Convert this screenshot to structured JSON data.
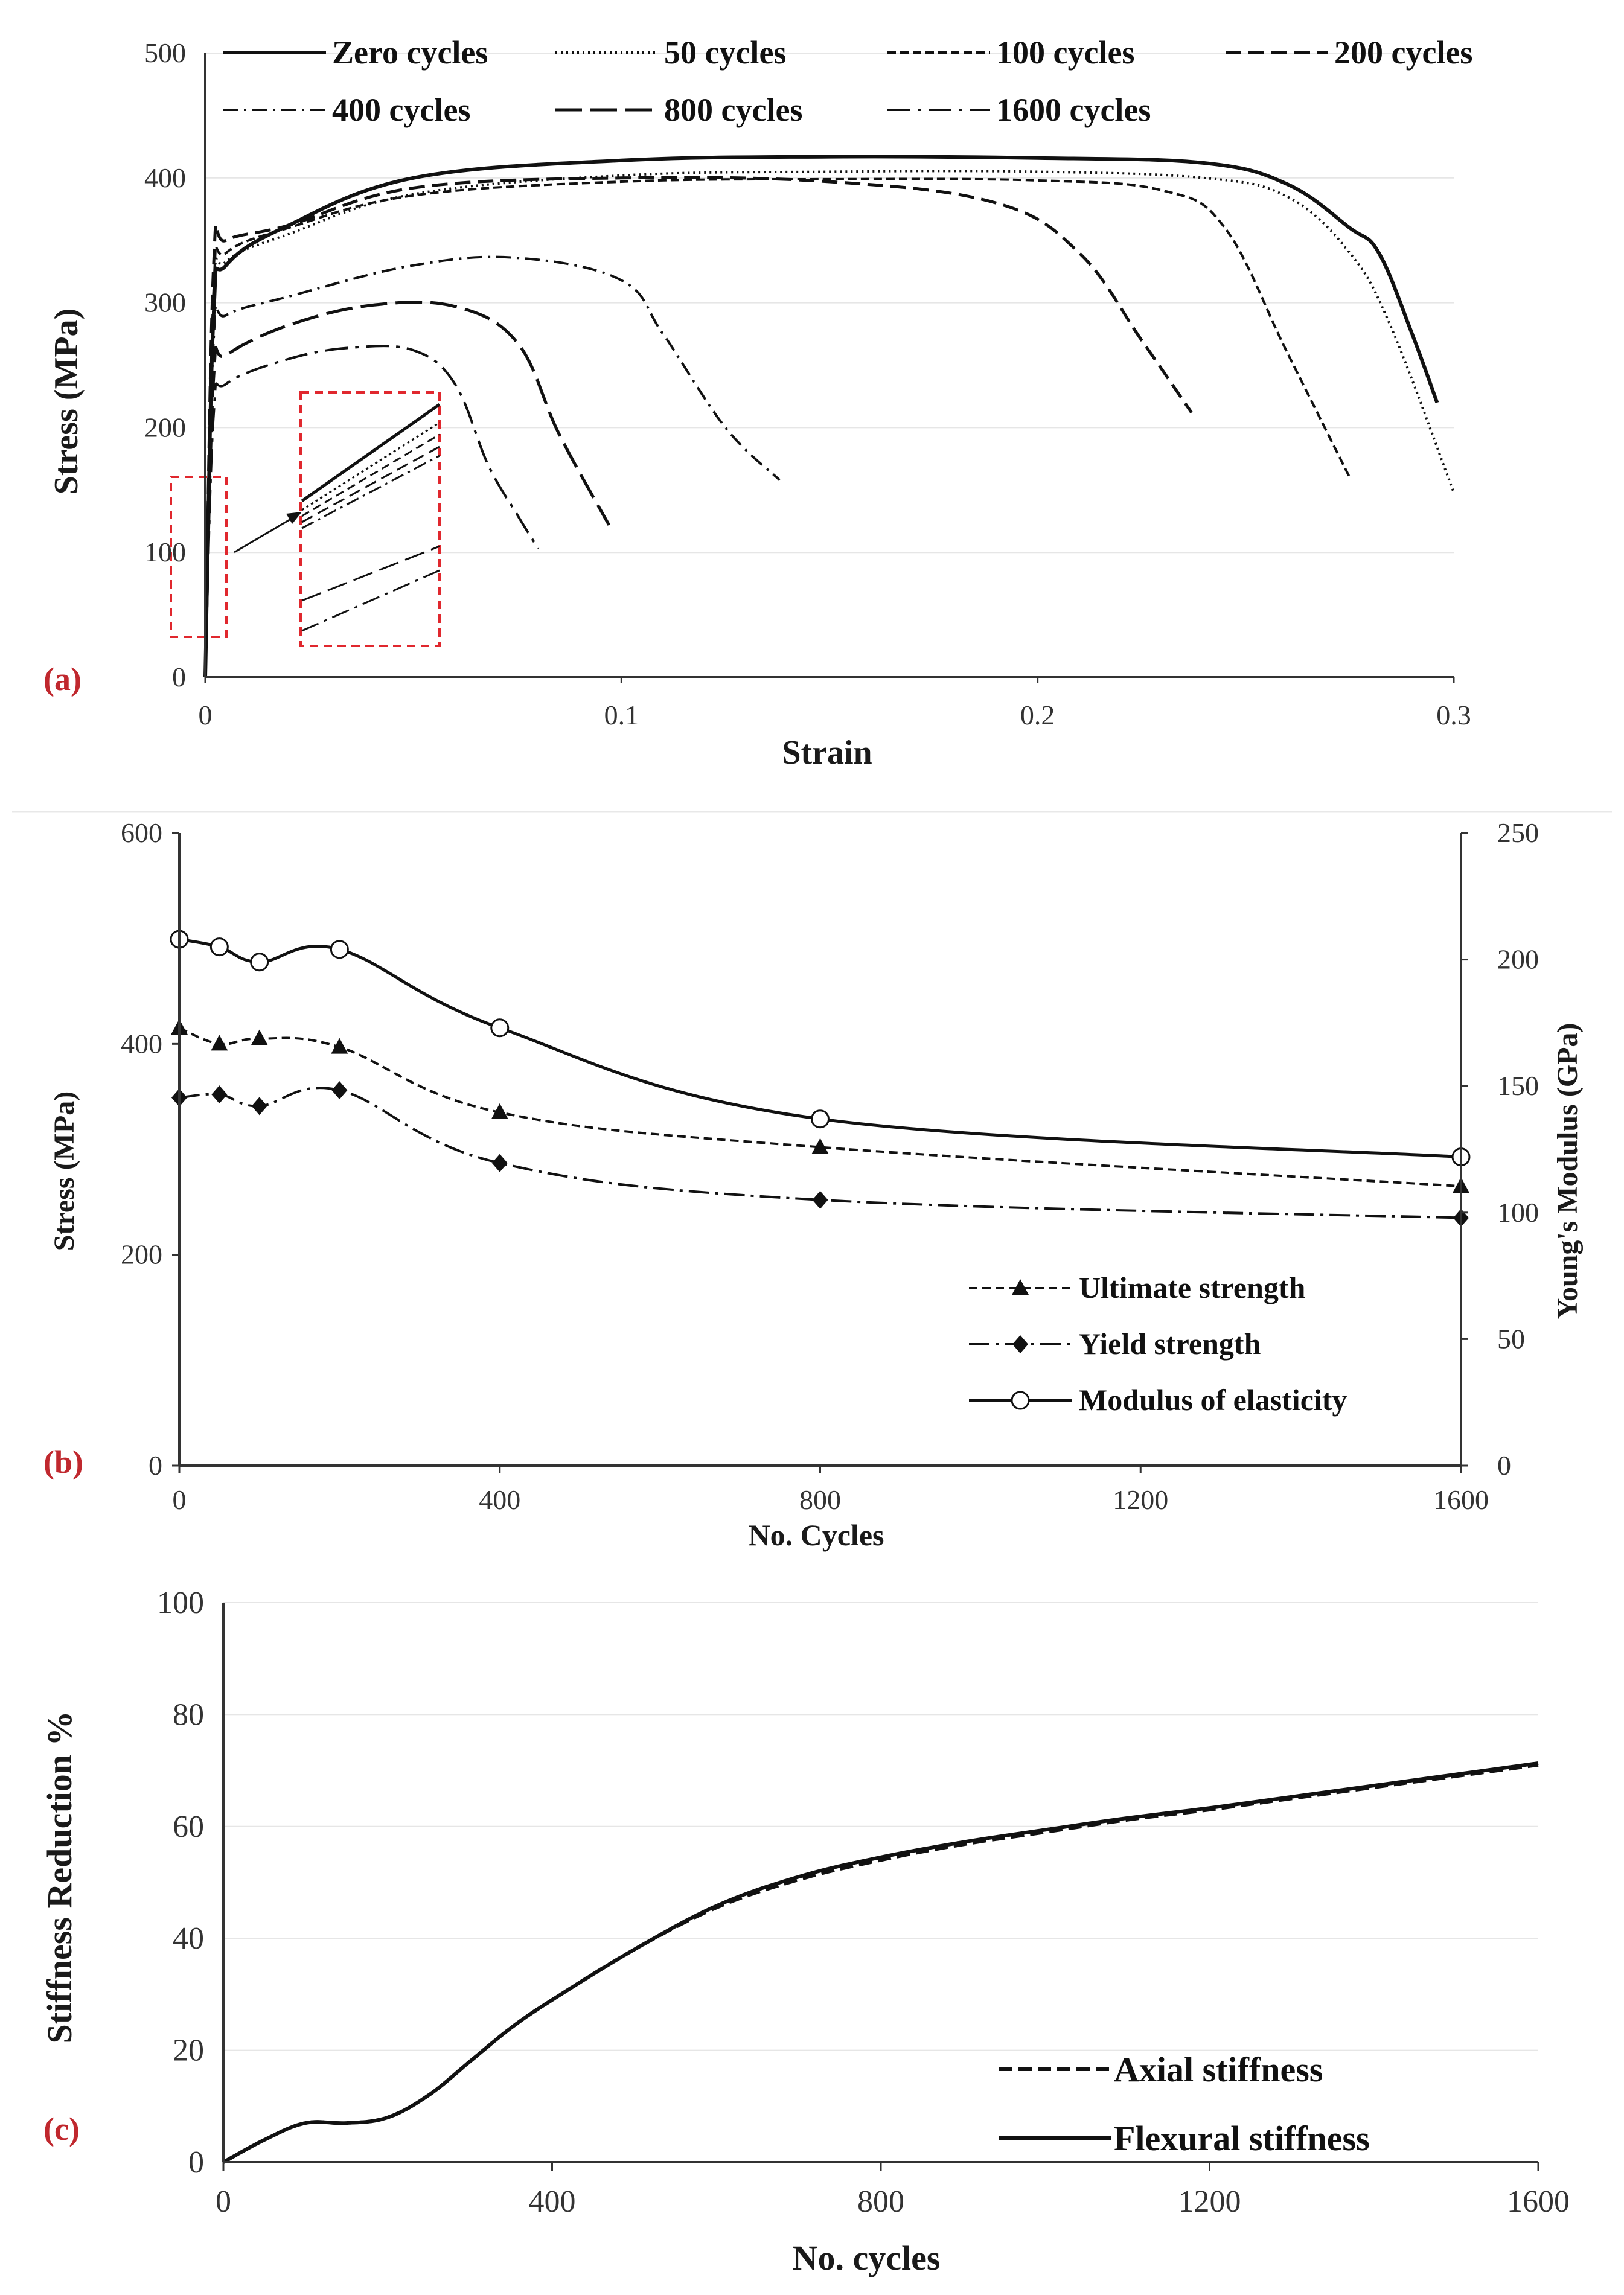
{
  "colors": {
    "line": "#111111",
    "axis": "#333333",
    "grid": "#e6e6e6",
    "panel_label": "#c0282e",
    "inset": "#e0282e"
  },
  "chart_data": [
    {
      "panel": "(a)",
      "type": "line",
      "xlabel": "Strain",
      "ylabel": "Stress (MPa)",
      "xlim": [
        0,
        0.3
      ],
      "ylim": [
        0,
        500
      ],
      "xticks": [
        "0",
        "0.1",
        "0.2",
        "0.3"
      ],
      "yticks": [
        "0",
        "100",
        "200",
        "300",
        "400",
        "500"
      ],
      "grid": true,
      "legend": "top",
      "series": [
        {
          "name": "Zero cycles",
          "dash": "solid",
          "x": [
            0,
            0.002,
            0.005,
            0.02,
            0.05,
            0.1,
            0.15,
            0.2,
            0.24,
            0.26,
            0.275,
            0.282,
            0.29,
            0.296
          ],
          "y": [
            0,
            290,
            330,
            362,
            400,
            414,
            417,
            416,
            412,
            395,
            360,
            340,
            275,
            220
          ]
        },
        {
          "name": "50 cycles",
          "dash": "dotted",
          "x": [
            0,
            0.002,
            0.005,
            0.02,
            0.05,
            0.1,
            0.15,
            0.2,
            0.24,
            0.26,
            0.275,
            0.285,
            0.3
          ],
          "y": [
            0,
            300,
            333,
            355,
            387,
            402,
            405,
            405,
            400,
            385,
            340,
            280,
            148
          ]
        },
        {
          "name": "100 cycles",
          "dash": "dash",
          "x": [
            0,
            0.002,
            0.005,
            0.02,
            0.05,
            0.1,
            0.15,
            0.2,
            0.23,
            0.245,
            0.26,
            0.275
          ],
          "y": [
            0,
            310,
            340,
            360,
            386,
            397,
            399,
            398,
            390,
            360,
            260,
            160
          ]
        },
        {
          "name": "200 cycles",
          "dash": "longdash",
          "x": [
            0,
            0.002,
            0.005,
            0.02,
            0.05,
            0.1,
            0.15,
            0.19,
            0.21,
            0.225,
            0.237
          ],
          "y": [
            0,
            330,
            350,
            362,
            392,
            400,
            397,
            380,
            340,
            270,
            212
          ]
        },
        {
          "name": "400 cycles",
          "dash": "dashdot",
          "x": [
            0,
            0.002,
            0.005,
            0.02,
            0.05,
            0.075,
            0.1,
            0.11,
            0.125,
            0.138
          ],
          "y": [
            0,
            270,
            290,
            305,
            330,
            336,
            318,
            275,
            200,
            158
          ]
        },
        {
          "name": "800 cycles",
          "dash": "longdash2",
          "x": [
            0,
            0.002,
            0.005,
            0.02,
            0.04,
            0.06,
            0.075,
            0.085,
            0.097
          ],
          "y": [
            0,
            240,
            258,
            282,
            298,
            297,
            268,
            195,
            122
          ]
        },
        {
          "name": "1600 cycles",
          "dash": "longdashdot",
          "x": [
            0,
            0.002,
            0.005,
            0.02,
            0.035,
            0.05,
            0.06,
            0.068,
            0.075,
            0.08
          ],
          "y": [
            0,
            210,
            235,
            255,
            264,
            262,
            235,
            170,
            130,
            103
          ]
        }
      ]
    },
    {
      "panel": "(b)",
      "type": "line",
      "xlabel": "No. Cycles",
      "ylabel": "Stress (MPa)",
      "y2label": "Young's Modulus (GPa)",
      "xlim": [
        0,
        1600
      ],
      "ylim": [
        0,
        600
      ],
      "y2lim": [
        0,
        250
      ],
      "xticks": [
        "0",
        "400",
        "800",
        "1200",
        "1600"
      ],
      "yticks": [
        "0",
        "200",
        "400",
        "600"
      ],
      "y2ticks": [
        "0",
        "50",
        "100",
        "150",
        "200",
        "250"
      ],
      "x": [
        0,
        50,
        100,
        200,
        400,
        800,
        1600
      ],
      "series": [
        {
          "name": "Ultimate strength",
          "axis": "left",
          "marker": "triangle",
          "values": [
            415,
            400,
            405,
            397,
            335,
            302,
            265
          ]
        },
        {
          "name": "Yield strength",
          "axis": "left",
          "marker": "diamond",
          "values": [
            349,
            352,
            341,
            356,
            287,
            252,
            235
          ]
        },
        {
          "name": "Modulus of elasticity",
          "axis": "right",
          "marker": "open-circle",
          "values": [
            208,
            205,
            199,
            204,
            173,
            137,
            122
          ]
        }
      ],
      "legend": "bottom-right"
    },
    {
      "panel": "(c)",
      "type": "line",
      "xlabel": "No. cycles",
      "ylabel": "Stiffness Reduction %",
      "xlim": [
        0,
        1600
      ],
      "ylim": [
        0,
        100
      ],
      "xticks": [
        "0",
        "400",
        "800",
        "1200",
        "1600"
      ],
      "yticks": [
        "0",
        "20",
        "40",
        "60",
        "80",
        "100"
      ],
      "grid": true,
      "legend": "bottom-right",
      "series": [
        {
          "name": "Axial stiffness",
          "dash": "dash",
          "x": [
            0,
            50,
            100,
            150,
            200,
            250,
            300,
            350,
            400,
            500,
            600,
            700,
            800,
            900,
            1000,
            1100,
            1200,
            1300,
            1400,
            1500,
            1600
          ],
          "y": [
            0,
            4,
            7,
            7,
            8,
            12,
            18,
            24,
            29,
            38,
            45.5,
            50.5,
            54,
            56.8,
            59,
            61.2,
            63,
            65,
            67,
            69,
            71
          ]
        },
        {
          "name": "Flexural stiffness",
          "dash": "solid",
          "x": [
            0,
            50,
            100,
            150,
            200,
            250,
            300,
            350,
            400,
            500,
            600,
            700,
            800,
            900,
            1000,
            1100,
            1200,
            1300,
            1400,
            1500,
            1600
          ],
          "y": [
            0,
            4,
            7,
            7,
            8,
            12,
            18,
            24,
            29,
            38,
            45.8,
            51,
            54.5,
            57.2,
            59.4,
            61.5,
            63.3,
            65.3,
            67.3,
            69.3,
            71.3
          ]
        }
      ]
    }
  ]
}
